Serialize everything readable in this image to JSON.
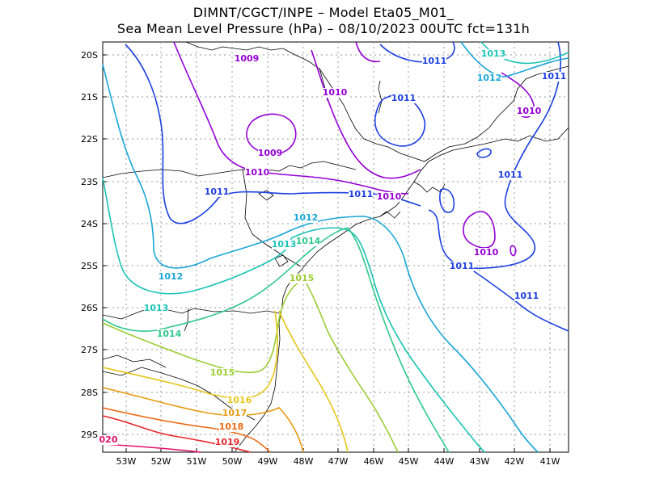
{
  "title": {
    "line1": "DIMNT/CGCT/INPE –  Model Eta05_M01_",
    "line2": "Sea Mean Level Pressure (hPa) – 08/10/2023 00UTC fct=131h"
  },
  "axes": {
    "y_labels": [
      "20S",
      "21S",
      "22S",
      "23S",
      "24S",
      "25S",
      "26S",
      "27S",
      "28S",
      "29S"
    ],
    "x_labels": [
      "53W",
      "52W",
      "51W",
      "50W",
      "49W",
      "48W",
      "47W",
      "46W",
      "45W",
      "44W",
      "43W",
      "42W",
      "41W"
    ]
  },
  "contour_labels": [
    {
      "text": "1009",
      "color": "#9400d3"
    },
    {
      "text": "1009",
      "color": "#9400d3"
    },
    {
      "text": "1010",
      "color": "#9400d3"
    },
    {
      "text": "1010",
      "color": "#9400d3"
    },
    {
      "text": "1010",
      "color": "#9400d3"
    },
    {
      "text": "1010",
      "color": "#9400d3"
    },
    {
      "text": "1010",
      "color": "#9400d3"
    },
    {
      "text": "1011",
      "color": "#1c3fe0"
    },
    {
      "text": "1011",
      "color": "#1c3fe0"
    },
    {
      "text": "1011",
      "color": "#1c3fe0"
    },
    {
      "text": "1011",
      "color": "#1c3fe0"
    },
    {
      "text": "1011",
      "color": "#1c3fe0"
    },
    {
      "text": "1011",
      "color": "#1c3fe0"
    },
    {
      "text": "1011",
      "color": "#1c3fe0"
    },
    {
      "text": "1011",
      "color": "#1c3fe0"
    },
    {
      "text": "1012",
      "color": "#1aa6d8"
    },
    {
      "text": "1012",
      "color": "#1aa6d8"
    },
    {
      "text": "1012",
      "color": "#1aa6d8"
    },
    {
      "text": "1013",
      "color": "#19c3b4"
    },
    {
      "text": "1013",
      "color": "#19c3b4"
    },
    {
      "text": "1013",
      "color": "#19c3b4"
    },
    {
      "text": "1014",
      "color": "#2ec88c"
    },
    {
      "text": "1014",
      "color": "#2ec88c"
    },
    {
      "text": "1015",
      "color": "#9acd32"
    },
    {
      "text": "1015",
      "color": "#9acd32"
    },
    {
      "text": "1016",
      "color": "#e6c619"
    },
    {
      "text": "1017",
      "color": "#e89a12"
    },
    {
      "text": "1018",
      "color": "#ef6a14"
    },
    {
      "text": "1019",
      "color": "#e8282a"
    },
    {
      "text": "020",
      "color": "#e0106e"
    }
  ],
  "colors": {
    "1009": "#9400d3",
    "1010": "#9400d3",
    "1011": "#1c3fe0",
    "1012": "#1aa6d8",
    "1013": "#19c3b4",
    "1014": "#2ec88c",
    "1015": "#9acd32",
    "1016": "#e6c619",
    "1017": "#e89a12",
    "1018": "#ef6a14",
    "1019": "#e8282a",
    "1020": "#e0106e",
    "grid": "#999999",
    "coast": "#000000"
  }
}
